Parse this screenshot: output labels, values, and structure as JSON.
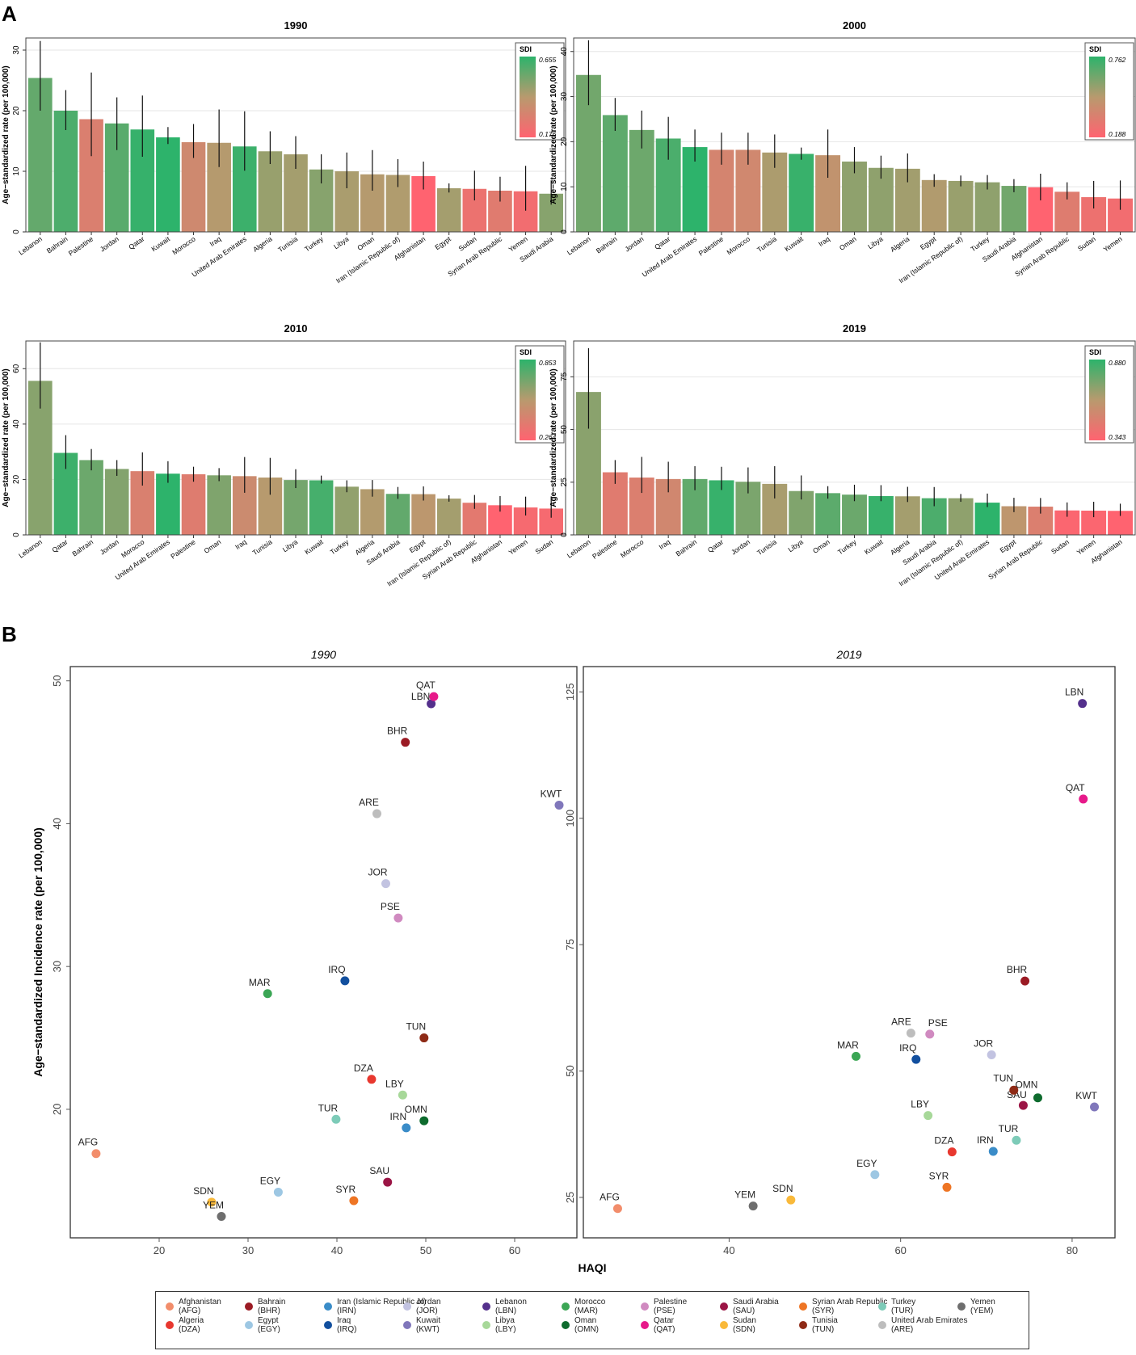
{
  "panel_labels": [
    "A",
    "B"
  ],
  "chart_data": [
    {
      "type": "bar",
      "title": "1990",
      "ylabel": "Age−standardized rate (per 100,000)",
      "ylim": [
        0,
        32
      ],
      "yticks": [
        0,
        10,
        20,
        30
      ],
      "sdi_legend": {
        "title": "SDI",
        "max": "0.655",
        "min": "0.176",
        "max_value": 0.655,
        "min_value": 0.176
      },
      "categories": [
        "Lebanon",
        "Bahrain",
        "Palestine",
        "Jordan",
        "Qatar",
        "Kuwait",
        "Morocco",
        "Iraq",
        "United Arab Emirates",
        "Algeria",
        "Tunisia",
        "Turkey",
        "Libya",
        "Oman",
        "Iran (Islamic Republic of)",
        "Afghanistan",
        "Egypt",
        "Sudan",
        "Syrian Arab Republic",
        "Yemen",
        "Saudi Arabia"
      ],
      "values": [
        25.4,
        20.0,
        18.6,
        17.9,
        16.9,
        15.6,
        14.8,
        14.7,
        14.1,
        13.3,
        12.8,
        10.3,
        10.0,
        9.5,
        9.4,
        9.2,
        7.2,
        7.1,
        6.8,
        6.7,
        6.3
      ],
      "lower": [
        20.0,
        16.8,
        12.5,
        13.5,
        12.4,
        14.5,
        12.2,
        10.7,
        10.1,
        11.2,
        10.4,
        8.0,
        7.2,
        6.8,
        7.4,
        7.0,
        6.5,
        5.2,
        5.0,
        3.5,
        4.5
      ],
      "upper": [
        31.5,
        23.4,
        26.3,
        22.2,
        22.5,
        17.3,
        17.8,
        20.2,
        19.9,
        16.6,
        15.8,
        12.8,
        13.1,
        13.5,
        12.0,
        11.6,
        8.0,
        10.1,
        9.1,
        10.9,
        8.5
      ],
      "sdi": [
        0.56,
        0.6,
        0.3,
        0.58,
        0.64,
        0.655,
        0.34,
        0.42,
        0.63,
        0.47,
        0.45,
        0.5,
        0.44,
        0.42,
        0.43,
        0.176,
        0.45,
        0.24,
        0.28,
        0.22,
        0.5
      ]
    },
    {
      "type": "bar",
      "title": "2000",
      "ylabel": "Age−standardized rate (per 100,000)",
      "ylim": [
        0,
        43
      ],
      "yticks": [
        0,
        10,
        20,
        30,
        40
      ],
      "sdi_legend": {
        "title": "SDI",
        "max": "0.762",
        "min": "0.188",
        "max_value": 0.762,
        "min_value": 0.188
      },
      "categories": [
        "Lebanon",
        "Bahrain",
        "Jordan",
        "Qatar",
        "United Arab Emirates",
        "Palestine",
        "Morocco",
        "Tunisia",
        "Kuwait",
        "Iraq",
        "Oman",
        "Libya",
        "Algeria",
        "Egypt",
        "Iran (Islamic Republic of)",
        "Turkey",
        "Saudi Arabia",
        "Afghanistan",
        "Syrian Arab Republic",
        "Sudan",
        "Yemen"
      ],
      "values": [
        34.8,
        25.9,
        22.6,
        20.7,
        18.8,
        18.2,
        18.2,
        17.6,
        17.3,
        17.0,
        15.6,
        14.2,
        14.0,
        11.5,
        11.3,
        11.0,
        10.2,
        9.9,
        8.9,
        7.7,
        7.4
      ],
      "lower": [
        28.1,
        22.4,
        18.5,
        16.0,
        15.6,
        14.9,
        14.9,
        14.2,
        16.0,
        12.0,
        13.0,
        11.8,
        11.0,
        10.0,
        10.1,
        9.4,
        8.8,
        7.0,
        7.2,
        5.2,
        4.9
      ],
      "upper": [
        42.5,
        29.7,
        26.9,
        25.5,
        22.7,
        22.0,
        22.0,
        21.6,
        18.7,
        22.7,
        18.8,
        16.9,
        17.4,
        12.8,
        12.5,
        12.6,
        11.7,
        12.9,
        11.0,
        11.3,
        11.4
      ],
      "sdi": [
        0.62,
        0.66,
        0.63,
        0.7,
        0.762,
        0.36,
        0.38,
        0.5,
        0.74,
        0.44,
        0.56,
        0.56,
        0.52,
        0.49,
        0.54,
        0.56,
        0.62,
        0.188,
        0.32,
        0.26,
        0.24
      ]
    },
    {
      "type": "bar",
      "title": "2010",
      "ylabel": "Age−standardized rate (per 100,000)",
      "ylim": [
        0,
        70
      ],
      "yticks": [
        0,
        20,
        40,
        60
      ],
      "sdi_legend": {
        "title": "SDI",
        "max": "0.853",
        "min": "0.264",
        "max_value": 0.853,
        "min_value": 0.264
      },
      "categories": [
        "Lebanon",
        "Qatar",
        "Bahrain",
        "Jordan",
        "Morocco",
        "United Arab Emirates",
        "Palestine",
        "Oman",
        "Iraq",
        "Tunisia",
        "Libya",
        "Kuwait",
        "Turkey",
        "Algeria",
        "Saudi Arabia",
        "Egypt",
        "Iran (Islamic Republic of)",
        "Syrian Arab Republic",
        "Afghanistan",
        "Yemen",
        "Sudan"
      ],
      "values": [
        55.6,
        29.6,
        27.0,
        23.8,
        23.0,
        22.1,
        21.9,
        21.5,
        21.2,
        20.7,
        19.8,
        19.7,
        17.4,
        16.5,
        14.8,
        14.7,
        13.1,
        11.6,
        10.7,
        9.9,
        9.5
      ],
      "lower": [
        45.6,
        23.8,
        23.3,
        21.3,
        17.8,
        18.8,
        19.2,
        19.4,
        15.2,
        14.5,
        16.9,
        18.5,
        15.4,
        13.8,
        13.0,
        12.4,
        12.0,
        9.4,
        8.4,
        7.0,
        6.2
      ],
      "upper": [
        69.5,
        36.0,
        31.0,
        27.0,
        29.8,
        26.6,
        24.6,
        24.1,
        28.1,
        27.8,
        23.7,
        21.4,
        19.7,
        19.8,
        17.3,
        17.5,
        14.3,
        14.4,
        14.0,
        13.8,
        13.9
      ],
      "sdi": [
        0.66,
        0.82,
        0.72,
        0.67,
        0.42,
        0.853,
        0.4,
        0.68,
        0.48,
        0.56,
        0.7,
        0.8,
        0.64,
        0.57,
        0.74,
        0.54,
        0.6,
        0.38,
        0.264,
        0.3,
        0.3
      ]
    },
    {
      "type": "bar",
      "title": "2019",
      "ylabel": "Age−standardized rate (per 100,000)",
      "ylim": [
        0,
        92
      ],
      "yticks": [
        0,
        25,
        50,
        75
      ],
      "sdi_legend": {
        "title": "SDI",
        "max": "0.880",
        "min": "0.343",
        "max_value": 0.88,
        "min_value": 0.343
      },
      "categories": [
        "Lebanon",
        "Palestine",
        "Morocco",
        "Iraq",
        "Bahrain",
        "Qatar",
        "Jordan",
        "Tunisia",
        "Libya",
        "Oman",
        "Turkey",
        "Kuwait",
        "Algeria",
        "Saudi Arabia",
        "Iran (Islamic Republic of)",
        "United Arab Emirates",
        "Egypt",
        "Syrian Arab Republic",
        "Sudan",
        "Yemen",
        "Afghanistan"
      ],
      "values": [
        67.8,
        29.7,
        27.2,
        26.5,
        26.5,
        25.9,
        25.2,
        24.2,
        20.8,
        19.8,
        19.1,
        18.4,
        18.3,
        17.4,
        17.4,
        15.3,
        13.6,
        13.4,
        11.6,
        11.5,
        11.4
      ],
      "lower": [
        50.4,
        24.2,
        19.9,
        20.2,
        21.2,
        21.3,
        19.7,
        17.3,
        16.8,
        17.2,
        16.0,
        16.0,
        15.6,
        13.6,
        15.7,
        13.2,
        10.8,
        10.1,
        8.6,
        8.4,
        9.0
      ],
      "upper": [
        88.6,
        35.5,
        37.0,
        34.7,
        32.6,
        32.3,
        32.0,
        32.6,
        28.2,
        23.1,
        23.8,
        23.6,
        22.8,
        22.7,
        19.4,
        19.6,
        17.6,
        17.5,
        15.4,
        15.7,
        14.8
      ],
      "sdi": [
        0.7,
        0.46,
        0.48,
        0.52,
        0.78,
        0.86,
        0.73,
        0.64,
        0.72,
        0.79,
        0.76,
        0.86,
        0.65,
        0.82,
        0.69,
        0.88,
        0.59,
        0.48,
        0.36,
        0.36,
        0.343
      ]
    },
    {
      "type": "scatter",
      "title": "1990",
      "xlabel": "HAQI",
      "ylabel": "Age−standardized Incidence rate (per 100,000)",
      "xlim": [
        10,
        67
      ],
      "ylim": [
        11,
        51
      ],
      "xticks": [
        20,
        30,
        40,
        50,
        60
      ],
      "yticks": [
        20,
        30,
        40,
        50
      ],
      "points": [
        {
          "label": "AFG",
          "x": 12.9,
          "y": 16.9,
          "color": "#F28D6B"
        },
        {
          "label": "DZA",
          "x": 43.9,
          "y": 22.1,
          "color": "#E8382F"
        },
        {
          "label": "BHR",
          "x": 47.7,
          "y": 45.7,
          "color": "#9B1B24"
        },
        {
          "label": "EGY",
          "x": 33.4,
          "y": 14.2,
          "color": "#9DC7E3"
        },
        {
          "label": "IRN",
          "x": 47.8,
          "y": 18.7,
          "color": "#3A8CC8"
        },
        {
          "label": "IRQ",
          "x": 40.9,
          "y": 29.0,
          "color": "#124F9E"
        },
        {
          "label": "JOR",
          "x": 45.5,
          "y": 35.8,
          "color": "#C2C3E1"
        },
        {
          "label": "KWT",
          "x": 65.0,
          "y": 41.3,
          "color": "#8077BB"
        },
        {
          "label": "LBN",
          "x": 50.6,
          "y": 48.4,
          "color": "#54308C"
        },
        {
          "label": "LBY",
          "x": 47.4,
          "y": 21.0,
          "color": "#A7D899"
        },
        {
          "label": "MAR",
          "x": 32.2,
          "y": 28.1,
          "color": "#3BA655"
        },
        {
          "label": "OMN",
          "x": 49.8,
          "y": 19.2,
          "color": "#0E6B2E"
        },
        {
          "label": "PSE",
          "x": 46.9,
          "y": 33.4,
          "color": "#D08AC0"
        },
        {
          "label": "QAT",
          "x": 50.9,
          "y": 48.9,
          "color": "#E7198A"
        },
        {
          "label": "SAU",
          "x": 45.7,
          "y": 14.9,
          "color": "#9B1545"
        },
        {
          "label": "SDN",
          "x": 25.9,
          "y": 13.5,
          "color": "#F9B93A"
        },
        {
          "label": "SYR",
          "x": 41.9,
          "y": 13.6,
          "color": "#EE7524"
        },
        {
          "label": "TUN",
          "x": 49.8,
          "y": 25.0,
          "color": "#8E2A16"
        },
        {
          "label": "TUR",
          "x": 39.9,
          "y": 19.3,
          "color": "#7DCBB8"
        },
        {
          "label": "ARE",
          "x": 44.5,
          "y": 40.7,
          "color": "#BDBDBD"
        },
        {
          "label": "YEM",
          "x": 27.0,
          "y": 12.5,
          "color": "#6E6E6E"
        }
      ]
    },
    {
      "type": "scatter",
      "title": "2019",
      "xlabel": "HAQI",
      "ylabel": "",
      "xlim": [
        23,
        85
      ],
      "ylim": [
        17,
        130
      ],
      "xticks": [
        40,
        60,
        80
      ],
      "yticks": [
        25,
        50,
        75,
        100,
        125
      ],
      "points": [
        {
          "label": "AFG",
          "x": 27.0,
          "y": 22.8,
          "color": "#F28D6B"
        },
        {
          "label": "DZA",
          "x": 66.0,
          "y": 34.0,
          "color": "#E8382F"
        },
        {
          "label": "BHR",
          "x": 74.5,
          "y": 67.8,
          "color": "#9B1B24"
        },
        {
          "label": "EGY",
          "x": 57.0,
          "y": 29.5,
          "color": "#9DC7E3"
        },
        {
          "label": "IRN",
          "x": 70.8,
          "y": 34.1,
          "color": "#3A8CC8"
        },
        {
          "label": "IRQ",
          "x": 61.8,
          "y": 52.3,
          "color": "#124F9E"
        },
        {
          "label": "JOR",
          "x": 70.6,
          "y": 53.2,
          "color": "#C2C3E1"
        },
        {
          "label": "KWT",
          "x": 82.6,
          "y": 42.9,
          "color": "#8077BB"
        },
        {
          "label": "LBN",
          "x": 81.2,
          "y": 122.7,
          "color": "#54308C"
        },
        {
          "label": "LBY",
          "x": 63.2,
          "y": 41.2,
          "color": "#A7D899"
        },
        {
          "label": "MAR",
          "x": 54.8,
          "y": 52.9,
          "color": "#3BA655"
        },
        {
          "label": "OMN",
          "x": 76.0,
          "y": 44.7,
          "color": "#0E6B2E"
        },
        {
          "label": "PSE",
          "x": 63.4,
          "y": 57.3,
          "color": "#D08AC0"
        },
        {
          "label": "QAT",
          "x": 81.3,
          "y": 103.8,
          "color": "#E7198A"
        },
        {
          "label": "SAU",
          "x": 74.3,
          "y": 43.2,
          "color": "#9B1545"
        },
        {
          "label": "SDN",
          "x": 47.2,
          "y": 24.5,
          "color": "#F9B93A"
        },
        {
          "label": "SYR",
          "x": 65.4,
          "y": 27.0,
          "color": "#EE7524"
        },
        {
          "label": "TUN",
          "x": 73.2,
          "y": 46.2,
          "color": "#8E2A16"
        },
        {
          "label": "TUR",
          "x": 73.5,
          "y": 36.3,
          "color": "#7DCBB8"
        },
        {
          "label": "ARE",
          "x": 61.2,
          "y": 57.5,
          "color": "#BDBDBD"
        },
        {
          "label": "YEM",
          "x": 42.8,
          "y": 23.3,
          "color": "#6E6E6E"
        }
      ]
    }
  ],
  "legend": [
    {
      "name": "Afghanistan",
      "code": "(AFG)",
      "color": "#F28D6B"
    },
    {
      "name": "Algeria",
      "code": "(DZA)",
      "color": "#E8382F"
    },
    {
      "name": "Bahrain",
      "code": "(BHR)",
      "color": "#9B1B24"
    },
    {
      "name": "Egypt",
      "code": "(EGY)",
      "color": "#9DC7E3"
    },
    {
      "name": "Iran (Islamic Republic of)",
      "code": "(IRN)",
      "color": "#3A8CC8"
    },
    {
      "name": "Iraq",
      "code": "(IRQ)",
      "color": "#124F9E"
    },
    {
      "name": "Jordan",
      "code": "(JOR)",
      "color": "#C2C3E1"
    },
    {
      "name": "Kuwait",
      "code": "(KWT)",
      "color": "#8077BB"
    },
    {
      "name": "Lebanon",
      "code": "(LBN)",
      "color": "#54308C"
    },
    {
      "name": "Libya",
      "code": "(LBY)",
      "color": "#A7D899"
    },
    {
      "name": "Morocco",
      "code": "(MAR)",
      "color": "#3BA655"
    },
    {
      "name": "Oman",
      "code": "(OMN)",
      "color": "#0E6B2E"
    },
    {
      "name": "Palestine",
      "code": "(PSE)",
      "color": "#D08AC0"
    },
    {
      "name": "Qatar",
      "code": "(QAT)",
      "color": "#E7198A"
    },
    {
      "name": "Saudi Arabia",
      "code": "(SAU)",
      "color": "#9B1545"
    },
    {
      "name": "Sudan",
      "code": "(SDN)",
      "color": "#F9B93A"
    },
    {
      "name": "Syrian Arab Republic",
      "code": "(SYR)",
      "color": "#EE7524"
    },
    {
      "name": "Tunisia",
      "code": "(TUN)",
      "color": "#8E2A16"
    },
    {
      "name": "Turkey",
      "code": "(TUR)",
      "color": "#7DCBB8"
    },
    {
      "name": "United Arab Emirates",
      "code": "(ARE)",
      "color": "#BDBDBD"
    },
    {
      "name": "Yemen",
      "code": "(YEM)",
      "color": "#6E6E6E"
    }
  ]
}
